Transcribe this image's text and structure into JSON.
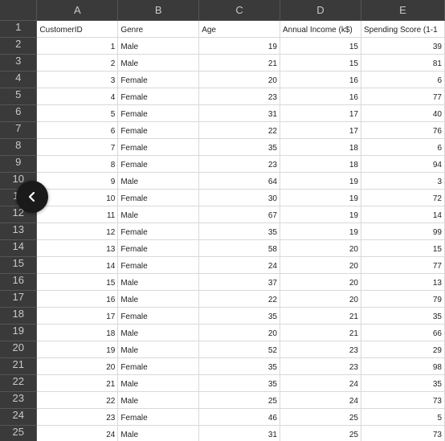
{
  "columns": [
    "A",
    "B",
    "C",
    "D",
    "E"
  ],
  "row_numbers": [
    "1",
    "2",
    "3",
    "4",
    "5",
    "6",
    "7",
    "8",
    "9",
    "10",
    "11",
    "12",
    "13",
    "14",
    "15",
    "16",
    "17",
    "18",
    "19",
    "20",
    "21",
    "22",
    "23",
    "24",
    "25"
  ],
  "header_row": [
    "CustomerID",
    "Genre",
    "Age",
    "Annual Income (k$)",
    "Spending Score (1-1"
  ],
  "rows": [
    [
      "1",
      "Male",
      "19",
      "15",
      "39"
    ],
    [
      "2",
      "Male",
      "21",
      "15",
      "81"
    ],
    [
      "3",
      "Female",
      "20",
      "16",
      "6"
    ],
    [
      "4",
      "Female",
      "23",
      "16",
      "77"
    ],
    [
      "5",
      "Female",
      "31",
      "17",
      "40"
    ],
    [
      "6",
      "Female",
      "22",
      "17",
      "76"
    ],
    [
      "7",
      "Female",
      "35",
      "18",
      "6"
    ],
    [
      "8",
      "Female",
      "23",
      "18",
      "94"
    ],
    [
      "9",
      "Male",
      "64",
      "19",
      "3"
    ],
    [
      "10",
      "Female",
      "30",
      "19",
      "72"
    ],
    [
      "11",
      "Male",
      "67",
      "19",
      "14"
    ],
    [
      "12",
      "Female",
      "35",
      "19",
      "99"
    ],
    [
      "13",
      "Female",
      "58",
      "20",
      "15"
    ],
    [
      "14",
      "Female",
      "24",
      "20",
      "77"
    ],
    [
      "15",
      "Male",
      "37",
      "20",
      "13"
    ],
    [
      "16",
      "Male",
      "22",
      "20",
      "79"
    ],
    [
      "17",
      "Female",
      "35",
      "21",
      "35"
    ],
    [
      "18",
      "Male",
      "20",
      "21",
      "66"
    ],
    [
      "19",
      "Male",
      "52",
      "23",
      "29"
    ],
    [
      "20",
      "Female",
      "35",
      "23",
      "98"
    ],
    [
      "21",
      "Male",
      "35",
      "24",
      "35"
    ],
    [
      "22",
      "Male",
      "25",
      "24",
      "73"
    ],
    [
      "23",
      "Female",
      "46",
      "25",
      "5"
    ],
    [
      "24",
      "Male",
      "31",
      "25",
      "73"
    ]
  ],
  "overlay": {
    "back_icon": "chevron-left-icon"
  },
  "colors": {
    "header_bg": "#3a3a3a",
    "header_text": "#c9c9c9",
    "cell_bg": "#ffffff",
    "gridline": "#d9d9d9",
    "back_button_bg": "#1a1a1a"
  }
}
